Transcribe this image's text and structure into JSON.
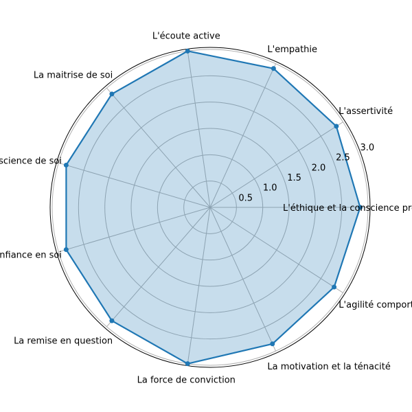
{
  "chart_data": {
    "type": "radar",
    "categories": [
      "L'éthique et la conscience professionnelle",
      "L'assertivité",
      "L'empathie",
      "L'écoute active",
      "La maitrise de soi",
      "La conscience de soi",
      "La confiance en soi",
      "La remise en question",
      "La force de conviction",
      "La motivation et la ténacité",
      "L'agilité comportementale"
    ],
    "values": [
      2.85,
      2.85,
      2.9,
      3.0,
      2.85,
      2.85,
      2.85,
      2.85,
      3.0,
      2.85,
      2.8
    ],
    "rlim": [
      0,
      3.0
    ],
    "rticks": [
      "0.5",
      "1.0",
      "1.5",
      "2.0",
      "2.5",
      "3.0"
    ],
    "rtick_values": [
      0.5,
      1.0,
      1.5,
      2.0,
      2.5,
      3.0
    ],
    "grid": true,
    "colors": {
      "line": "#1f77b4",
      "fill": "#1f77b4",
      "grid": "#b0b0b0",
      "frame": "#000000"
    }
  }
}
